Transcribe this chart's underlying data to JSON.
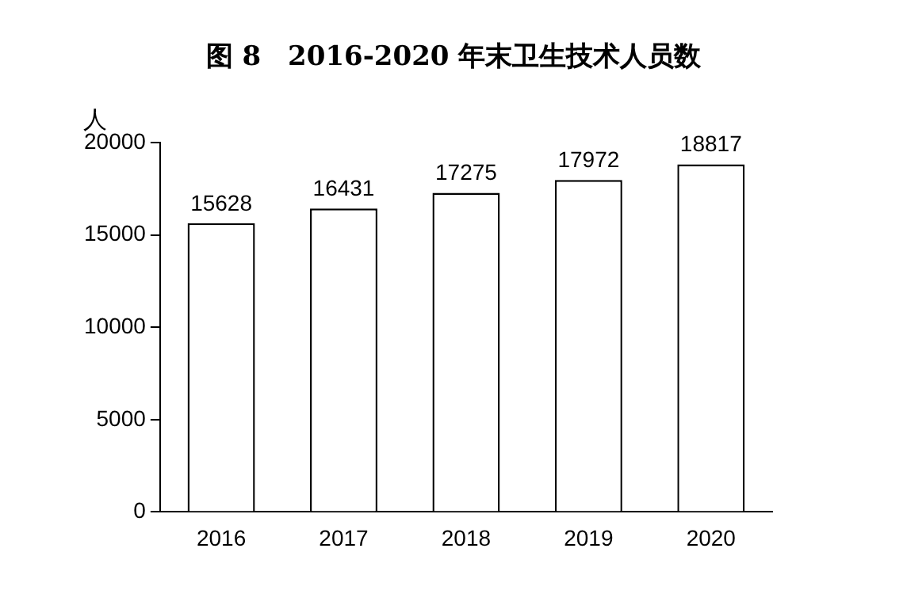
{
  "chart_data": {
    "type": "bar",
    "title": "图 8　2016-2020 年末卫生技术人员数",
    "ylabel": "人",
    "categories": [
      "2016",
      "2017",
      "2018",
      "2019",
      "2020"
    ],
    "values": [
      15628,
      16431,
      17275,
      17972,
      18817
    ],
    "color": "#ffffff",
    "ylim": [
      0,
      20000
    ],
    "yticks": [
      0,
      5000,
      10000,
      15000,
      20000
    ],
    "grid": false,
    "legend": false,
    "data_labels": true
  }
}
